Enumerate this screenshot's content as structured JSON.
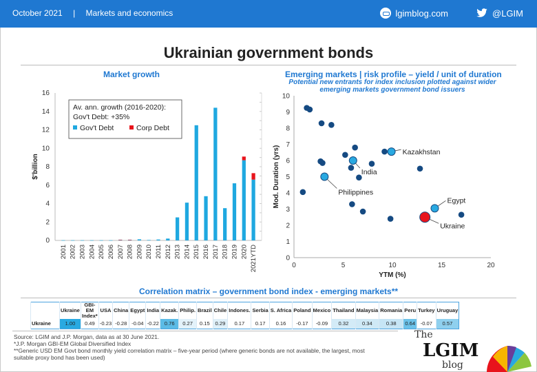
{
  "header": {
    "date": "October 2021",
    "separator": "|",
    "section": "Markets and economics",
    "site": "lgimblog.com",
    "twitter": "@LGIM"
  },
  "title": "Ukrainian government bonds",
  "left_chart": {
    "title": "Market growth",
    "legend_title": "Av. ann. growth (2016-2020):",
    "legend_growth": "Gov't Debt: +35%",
    "legend_gov": "Gov't Debt",
    "legend_corp": "Corp Debt",
    "ylabel": "$'billion"
  },
  "right_chart": {
    "title": "Emerging markets | risk profile – yield / unit of duration",
    "subtitle_line1": "Potential new entrants for index inclusion plotted against wider",
    "subtitle_line2": "emerging markets government bond issuers",
    "xlabel": "YTM (%)",
    "ylabel": "Mod. Duration (yrs)"
  },
  "chart_data": [
    {
      "type": "bar",
      "title": "Market growth",
      "ylabel": "$'billion",
      "ylim": [
        0,
        16
      ],
      "yticks": [
        0,
        2,
        4,
        6,
        8,
        10,
        12,
        14,
        16
      ],
      "categories": [
        "2001",
        "2002",
        "2003",
        "2004",
        "2005",
        "2006",
        "2007",
        "2008",
        "2009",
        "2010",
        "2011",
        "2012",
        "2013",
        "2014",
        "2015",
        "2016",
        "2017",
        "2018",
        "2019",
        "2020",
        "2021YTD"
      ],
      "series": [
        {
          "name": "Gov't Debt",
          "color": "#1fa8e0",
          "values": [
            0.02,
            0.02,
            0.02,
            0.02,
            0.02,
            0.02,
            0.05,
            0.05,
            0.12,
            0.05,
            0.1,
            0.2,
            2.5,
            4.1,
            12.5,
            4.8,
            14.4,
            3.5,
            6.2,
            8.7,
            6.6
          ]
        },
        {
          "name": "Corp Debt",
          "color": "#e8141c",
          "values": [
            0,
            0,
            0,
            0,
            0,
            0,
            0.03,
            0.03,
            0,
            0,
            0,
            0,
            0,
            0,
            0,
            0,
            0,
            0,
            0,
            0.4,
            0.7
          ]
        }
      ],
      "stacked": true,
      "legend": "top-left"
    },
    {
      "type": "scatter",
      "title": "Emerging markets | risk profile – yield / unit of duration",
      "xlabel": "YTM (%)",
      "ylabel": "Mod. Duration (yrs)",
      "xlim": [
        0,
        20
      ],
      "ylim": [
        0,
        10
      ],
      "xticks": [
        0,
        5,
        10,
        15,
        20
      ],
      "yticks": [
        0,
        1,
        2,
        3,
        4,
        5,
        6,
        7,
        8,
        9,
        10
      ],
      "points": [
        {
          "x": 1.3,
          "y": 9.25
        },
        {
          "x": 1.6,
          "y": 9.15
        },
        {
          "x": 2.8,
          "y": 8.3
        },
        {
          "x": 3.8,
          "y": 8.2
        },
        {
          "x": 6.2,
          "y": 6.8
        },
        {
          "x": 5.2,
          "y": 6.35
        },
        {
          "x": 9.2,
          "y": 6.55
        },
        {
          "x": 2.7,
          "y": 5.95
        },
        {
          "x": 2.9,
          "y": 5.85
        },
        {
          "x": 7.9,
          "y": 5.8
        },
        {
          "x": 5.8,
          "y": 5.55
        },
        {
          "x": 12.8,
          "y": 5.5
        },
        {
          "x": 6.6,
          "y": 4.95
        },
        {
          "x": 0.9,
          "y": 4.05
        },
        {
          "x": 5.9,
          "y": 3.3
        },
        {
          "x": 7.0,
          "y": 2.85
        },
        {
          "x": 9.8,
          "y": 2.4
        },
        {
          "x": 17.0,
          "y": 2.65
        }
      ],
      "labeled_points": [
        {
          "label": "Kazakhstan",
          "x": 9.9,
          "y": 6.55,
          "color": "#29a9e1"
        },
        {
          "label": "India",
          "x": 6.0,
          "y": 6.0,
          "color": "#29a9e1"
        },
        {
          "label": "Philippines",
          "x": 3.1,
          "y": 5.0,
          "color": "#29a9e1"
        },
        {
          "label": "Egypt",
          "x": 14.3,
          "y": 3.05,
          "color": "#29a9e1"
        },
        {
          "label": "Ukraine",
          "x": 13.3,
          "y": 2.5,
          "color": "#e8141c"
        }
      ]
    }
  ],
  "correlation": {
    "title": "Correlation matrix – government bond index - emerging markets**",
    "columns": [
      "Ukraine",
      "GBI-EM Index*",
      "USA",
      "China",
      "Egypt",
      "India",
      "Kazak.",
      "Philip.",
      "Brazil",
      "Chile",
      "Indones.",
      "Serbia",
      "S. Africa",
      "Poland",
      "Mexico",
      "Thailand",
      "Malaysia",
      "Romania",
      "Peru",
      "Turkey",
      "Uruguay"
    ],
    "row_label": "Ukraine",
    "values": [
      "1.00",
      "0.49",
      "-0.23",
      "-0.28",
      "-0.04",
      "-0.22",
      "0.76",
      "0.27",
      "0.15",
      "0.29",
      "0.17",
      "0.17",
      "0.16",
      "-0.17",
      "-0.09",
      "0.32",
      "0.34",
      "0.38",
      "0.64",
      "-0.07",
      "0.57"
    ],
    "shades": [
      "#29a9e1",
      "#ffffff",
      "#ffffff",
      "#ffffff",
      "#ffffff",
      "#ffffff",
      "#5bbbe6",
      "#e3f2fa",
      "#ffffff",
      "#dff0f9",
      "#ffffff",
      "#ffffff",
      "#ffffff",
      "#ffffff",
      "#ffffff",
      "#d3ebf7",
      "#cfe9f6",
      "#c6e5f5",
      "#6cc2e9",
      "#ffffff",
      "#8fd0ee"
    ]
  },
  "footnotes": {
    "line1": "Source: LGIM and J.P. Morgan, data as at 30 June 2021.",
    "line2": "*J.P. Morgan GBI-EM  Global Diversified Index",
    "line3": "**Generic USD EM  Govt bond monthly yield correlation matrix – five-year period (where generic bonds are not available, the largest, most",
    "line4": "suitable proxy bond has been used)"
  },
  "logo": {
    "the": "The",
    "lgim": "LGIM",
    "blog": "blog"
  }
}
